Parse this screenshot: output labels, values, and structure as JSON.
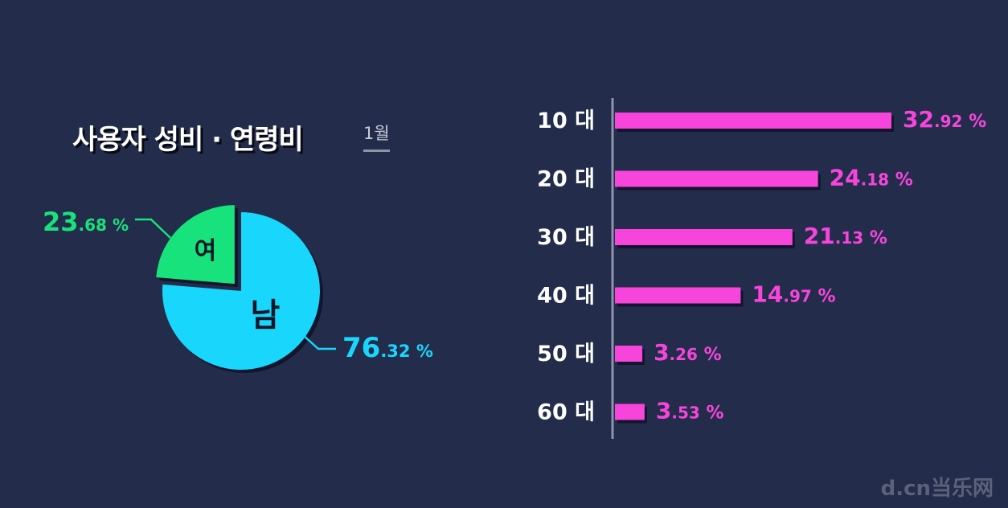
{
  "title": "사용자 성비 · 연령비",
  "period": "1월",
  "watermark": "d.cn当乐网",
  "colors": {
    "background": "#232c4b",
    "male": "#18d6fc",
    "female": "#17e27c",
    "bar": "#f745dc"
  },
  "chart_data": [
    {
      "type": "pie",
      "title": "사용자 성비",
      "slices": [
        {
          "name": "남",
          "value": 76.32,
          "int": "76",
          "dec": ".32",
          "unit": "%",
          "color": "#18d6fc"
        },
        {
          "name": "여",
          "value": 23.68,
          "int": "23",
          "dec": ".68",
          "unit": "%",
          "color": "#17e27c",
          "exploded": true
        }
      ]
    },
    {
      "type": "bar",
      "orientation": "horizontal",
      "title": "연령비",
      "categories": [
        "10 대",
        "20 대",
        "30 대",
        "40 대",
        "50 대",
        "60 대"
      ],
      "values": [
        32.92,
        24.18,
        21.13,
        14.97,
        3.26,
        3.53
      ],
      "value_int": [
        "32",
        "24",
        "21",
        "14",
        "3",
        "3"
      ],
      "value_dec": [
        ".92",
        ".18",
        ".13",
        ".97",
        ".26",
        ".53"
      ],
      "unit": "%",
      "color": "#f745dc"
    }
  ]
}
